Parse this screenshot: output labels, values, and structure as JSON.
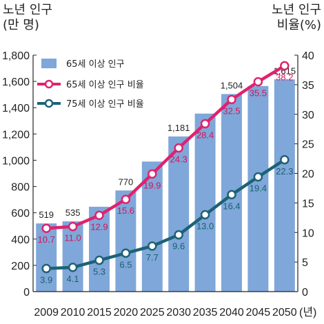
{
  "chart_data": {
    "type": "bar",
    "left_axis_title": [
      "노년 인구",
      "(만 명)"
    ],
    "right_axis_title": [
      "노년 인구",
      "비율(%)"
    ],
    "x_unit": "(년)",
    "categories": [
      "2009",
      "2010",
      "2015",
      "2020",
      "2025",
      "2030",
      "2035",
      "2040",
      "2045",
      "2050"
    ],
    "ylim": [
      0,
      1800
    ],
    "y_ticks": [
      "0",
      "200",
      "400",
      "600",
      "800",
      "1,000",
      "1,200",
      "1,400",
      "1,600",
      "1,800"
    ],
    "y2lim": [
      0,
      40
    ],
    "y2_ticks": [
      "0",
      "5",
      "10",
      "15",
      "20",
      "25",
      "30",
      "35",
      "40"
    ],
    "bar_series": {
      "name": "65세 이상 인구",
      "color": "#7fa7d9",
      "values": [
        519,
        535,
        646,
        770,
        990,
        1181,
        1355,
        1504,
        1565,
        1615
      ],
      "labels": [
        "519",
        "535",
        "",
        "770",
        "",
        "1,181",
        "",
        "1,504",
        "",
        "1,615"
      ]
    },
    "line_series": [
      {
        "name": "65세 이상 인구 비율",
        "color": "#e0226e",
        "label_color": "#d4145a",
        "values": [
          10.7,
          11.0,
          12.9,
          15.6,
          19.9,
          24.3,
          28.4,
          32.5,
          35.5,
          38.2
        ],
        "labels": [
          "10.7",
          "11.0",
          "12.9",
          "15.6",
          "19.9",
          "24.3",
          "28.4",
          "32.5",
          "35.5",
          "38.2"
        ]
      },
      {
        "name": "75세 이상 인구 비율",
        "color": "#1d6276",
        "label_color": "#1a5f72",
        "values": [
          3.9,
          4.1,
          5.3,
          6.5,
          7.7,
          9.6,
          13.0,
          16.4,
          19.4,
          22.3
        ],
        "labels": [
          "3.9",
          "4.1",
          "5.3",
          "6.5",
          "7.7",
          "9.6",
          "13.0",
          "16.4",
          "19.4",
          "22.3"
        ]
      }
    ],
    "legend_position": "top-left"
  }
}
